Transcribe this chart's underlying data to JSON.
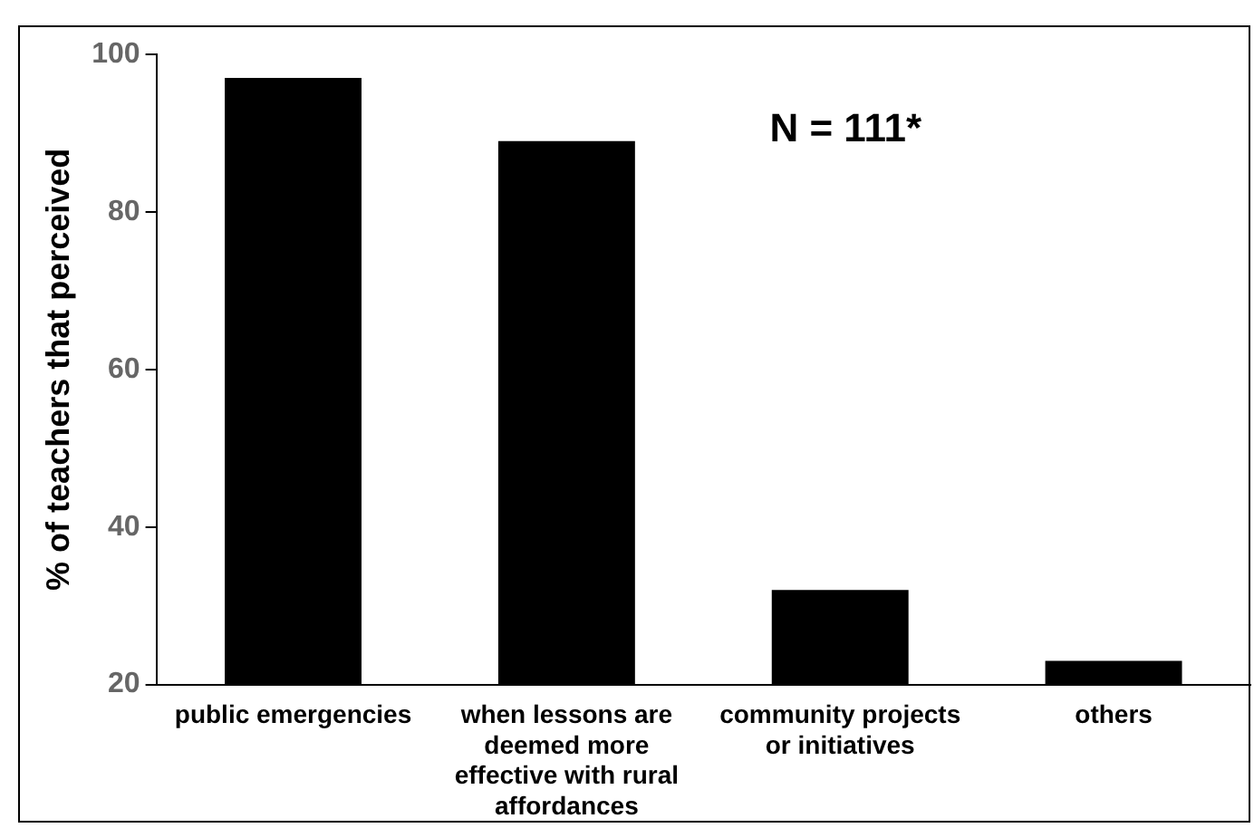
{
  "chart_data": {
    "type": "bar",
    "ylabel": "% of teachers that perceived",
    "categories": [
      "public emergencies",
      "when lessons are deemed more effective with rural affordances",
      "community projects or initiatives",
      "others"
    ],
    "values": [
      97,
      89,
      32,
      23
    ],
    "color": "#000000",
    "ylim": [
      20,
      100
    ],
    "yticks": [
      20,
      40,
      60,
      80,
      100
    ],
    "grid": false,
    "legend": false,
    "annotations": [
      "N = 111*"
    ]
  }
}
